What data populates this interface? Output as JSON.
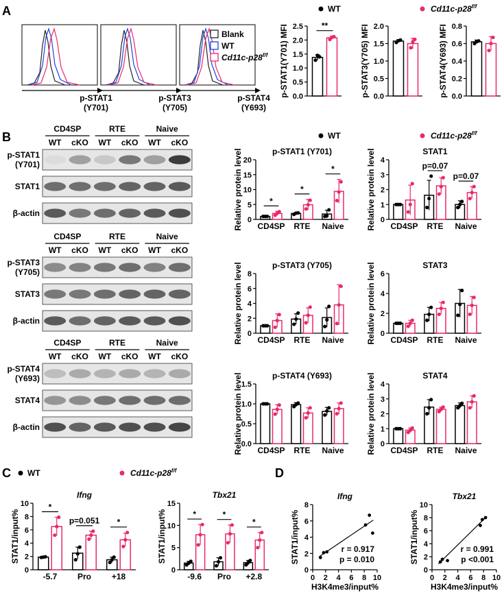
{
  "colors": {
    "wt": "#000000",
    "cko": "#e8296a",
    "blank": "#222222",
    "wt_line": "#2040e0"
  },
  "legend": {
    "wt": "WT",
    "cko": "Cd11c-p28",
    "cko_sup": "f/f"
  },
  "panel_a": {
    "letter": "A",
    "flow": [
      {
        "label": "p-STAT1",
        "site": "(Y701)"
      },
      {
        "label": "p-STAT3",
        "site": "(Y705)"
      },
      {
        "label": "p-STAT4",
        "site": "(Y693)"
      }
    ],
    "flow_legend": [
      "Blank",
      "WT",
      "Cd11c-p28"
    ],
    "flow_legend_sup": "f/f"
  },
  "panel_b": {
    "letter": "B",
    "blots": [
      {
        "groups": [
          "CD4SP",
          "RTE",
          "Naive"
        ],
        "lanes": [
          "WT",
          "cKO",
          "WT",
          "cKO",
          "WT",
          "cKO"
        ],
        "rows": [
          "p-STAT1\n(Y701)",
          "STAT1",
          "β-actin"
        ]
      },
      {
        "groups": [
          "CD4SP",
          "RTE",
          "Naive"
        ],
        "lanes": [
          "WT",
          "cKO",
          "WT",
          "cKO",
          "WT",
          "cKO"
        ],
        "rows": [
          "p-STAT3\n(Y705)",
          "STAT3",
          "β-actin"
        ]
      },
      {
        "groups": [
          "CD4SP",
          "RTE",
          "Naive"
        ],
        "lanes": [
          "WT",
          "cKO",
          "WT",
          "cKO",
          "WT",
          "cKO"
        ],
        "rows": [
          "p-STAT4\n(Y693)",
          "STAT4",
          "β-actin"
        ]
      }
    ]
  },
  "panel_c": {
    "letter": "C"
  },
  "panel_d": {
    "letter": "D"
  },
  "chart_data": [
    {
      "id": "a1",
      "type": "bar",
      "ylabel": "p-STAT1(Y701) MFI",
      "ylim": [
        0,
        2.5
      ],
      "yticks": [
        0,
        0.5,
        1.0,
        1.5,
        2.0,
        2.5
      ],
      "categories": [
        ""
      ],
      "series": [
        {
          "name": "WT",
          "values": [
            1.38
          ],
          "err": [
            0.1
          ],
          "points": [
            [
              1.28,
              1.45,
              1.4
            ]
          ]
        },
        {
          "name": "Cd11c-p28f/f",
          "values": [
            2.08
          ],
          "err": [
            0.06
          ],
          "points": [
            [
              2.02,
              2.1,
              2.12
            ]
          ]
        }
      ],
      "annotations": [
        {
          "cat": 0,
          "text": "**"
        }
      ]
    },
    {
      "id": "a2",
      "type": "bar",
      "ylabel": "p-STAT3(Y705) MFI",
      "ylim": [
        0,
        2.0
      ],
      "yticks": [
        0,
        0.5,
        1.0,
        1.5,
        2.0
      ],
      "categories": [
        ""
      ],
      "series": [
        {
          "name": "WT",
          "values": [
            1.57
          ],
          "err": [
            0.04
          ],
          "points": [
            [
              1.53,
              1.58,
              1.6
            ]
          ]
        },
        {
          "name": "Cd11c-p28f/f",
          "values": [
            1.5
          ],
          "err": [
            0.15
          ],
          "points": [
            [
              1.38,
              1.55,
              1.62
            ]
          ]
        }
      ]
    },
    {
      "id": "a3",
      "type": "bar",
      "ylabel": "p-STAT4(Y693) MFI",
      "ylim": [
        0,
        0.8
      ],
      "yticks": [
        0,
        0.2,
        0.4,
        0.6,
        0.8
      ],
      "categories": [
        ""
      ],
      "series": [
        {
          "name": "WT",
          "values": [
            0.62
          ],
          "err": [
            0.02
          ],
          "points": [
            [
              0.6,
              0.62,
              0.63
            ]
          ]
        },
        {
          "name": "Cd11c-p28f/f",
          "values": [
            0.6
          ],
          "err": [
            0.08
          ],
          "points": [
            [
              0.52,
              0.6,
              0.67
            ]
          ]
        }
      ]
    },
    {
      "id": "b1",
      "type": "bar",
      "title": "p-STAT1 (Y701)",
      "ylabel": "Relative protein level",
      "ylim": [
        0,
        20
      ],
      "yticks": [
        0,
        5,
        10,
        15,
        20
      ],
      "categories": [
        "CD4SP",
        "RTE",
        "Naive"
      ],
      "series": [
        {
          "name": "WT",
          "values": [
            1.0,
            2.0,
            1.8
          ],
          "err": [
            0.1,
            0.3,
            1.3
          ],
          "points": [
            [
              1,
              1,
              1
            ],
            [
              1.7,
              2.1,
              2.2
            ],
            [
              1,
              1.2,
              3.2
            ]
          ]
        },
        {
          "name": "Cd11c-p28f/f",
          "values": [
            2.0,
            4.9,
            9.4
          ],
          "err": [
            0.7,
            1.8,
            4.0
          ],
          "points": [
            [
              1.4,
              2.1,
              2.6
            ],
            [
              3.5,
              4.9,
              6.4
            ],
            [
              6.3,
              9.2,
              12.6
            ]
          ]
        }
      ],
      "annotations": [
        {
          "cat": 0,
          "text": "*"
        },
        {
          "cat": 1,
          "text": "*"
        },
        {
          "cat": 2,
          "text": "*"
        }
      ]
    },
    {
      "id": "b2",
      "type": "bar",
      "title": "STAT1",
      "ylabel": "Relative protein level",
      "ylim": [
        0,
        4
      ],
      "yticks": [
        0,
        1,
        2,
        3,
        4
      ],
      "categories": [
        "CD4SP",
        "RTE",
        "Naive"
      ],
      "series": [
        {
          "name": "WT",
          "values": [
            1.0,
            1.62,
            1.0
          ],
          "err": [
            0.02,
            1.0,
            0.25
          ],
          "points": [
            [
              1,
              1,
              1
            ],
            [
              0.8,
              1.4,
              2.9
            ],
            [
              0.8,
              1,
              1.2
            ]
          ]
        },
        {
          "name": "Cd11c-p28f/f",
          "values": [
            1.3,
            2.25,
            1.8
          ],
          "err": [
            1.0,
            0.55,
            0.4
          ],
          "points": [
            [
              0.5,
              1.0,
              2.4
            ],
            [
              1.7,
              2.2,
              2.8
            ],
            [
              1.4,
              1.8,
              2.2
            ]
          ]
        }
      ],
      "annotations": [
        {
          "cat": 1,
          "text": "p=0.07"
        },
        {
          "cat": 2,
          "text": "p=0.07"
        }
      ]
    },
    {
      "id": "b3",
      "type": "bar",
      "title": "p-STAT3 (Y705)",
      "ylabel": "Relative protein level",
      "ylim": [
        0,
        8
      ],
      "yticks": [
        0,
        2,
        4,
        6,
        8
      ],
      "categories": [
        "CD4SP",
        "RTE",
        "Naive"
      ],
      "series": [
        {
          "name": "WT",
          "values": [
            1.0,
            1.9,
            2.1
          ],
          "err": [
            0.05,
            0.7,
            1.3
          ],
          "points": [
            [
              1,
              1,
              1
            ],
            [
              1.2,
              1.9,
              2.7
            ],
            [
              0.9,
              1.8,
              3.6
            ]
          ]
        },
        {
          "name": "Cd11c-p28f/f",
          "values": [
            1.7,
            2.4,
            3.8
          ],
          "err": [
            0.9,
            1.0,
            2.7
          ],
          "points": [
            [
              0.8,
              1.7,
              2.5
            ],
            [
              1.4,
              2.4,
              3.5
            ],
            [
              1.3,
              3.8,
              6.3
            ]
          ]
        }
      ]
    },
    {
      "id": "b4",
      "type": "bar",
      "title": "STAT3",
      "ylabel": "Relative protein level",
      "ylim": [
        0,
        6
      ],
      "yticks": [
        0,
        2,
        4,
        6
      ],
      "categories": [
        "CD4SP",
        "RTE",
        "Naive"
      ],
      "series": [
        {
          "name": "WT",
          "values": [
            1.0,
            1.9,
            3.0
          ],
          "err": [
            0.02,
            0.7,
            1.4
          ],
          "points": [
            [
              1,
              1,
              1
            ],
            [
              1.3,
              1.9,
              2.6
            ],
            [
              1.8,
              2.9,
              4.3
            ]
          ]
        },
        {
          "name": "Cd11c-p28f/f",
          "values": [
            1.0,
            2.5,
            2.8
          ],
          "err": [
            0.3,
            0.6,
            0.9
          ],
          "points": [
            [
              0.7,
              1,
              1.3
            ],
            [
              1.9,
              2.5,
              3.1
            ],
            [
              1.9,
              2.8,
              3.6
            ]
          ]
        }
      ]
    },
    {
      "id": "b5",
      "type": "bar",
      "title": "p-STAT4 (Y693)",
      "ylabel": "Relative protein level",
      "ylim": [
        0,
        1.5
      ],
      "yticks": [
        0,
        0.5,
        1.0,
        1.5
      ],
      "categories": [
        "CD4SP",
        "RTE",
        "Naive"
      ],
      "series": [
        {
          "name": "WT",
          "values": [
            1.0,
            0.98,
            0.81
          ],
          "err": [
            0.01,
            0.05,
            0.1
          ],
          "points": [
            [
              1,
              1,
              1
            ],
            [
              0.93,
              0.98,
              1.02
            ],
            [
              0.72,
              0.82,
              0.9
            ]
          ]
        },
        {
          "name": "Cd11c-p28f/f",
          "values": [
            0.86,
            0.77,
            0.88
          ],
          "err": [
            0.12,
            0.13,
            0.14
          ],
          "points": [
            [
              0.74,
              0.86,
              0.97
            ],
            [
              0.65,
              0.77,
              0.9
            ],
            [
              0.75,
              0.88,
              1.02
            ]
          ]
        }
      ]
    },
    {
      "id": "b6",
      "type": "bar",
      "title": "STAT4",
      "ylabel": "Relative protein level",
      "ylim": [
        0,
        4
      ],
      "yticks": [
        0,
        1,
        2,
        3,
        4
      ],
      "categories": [
        "CD4SP",
        "RTE",
        "Naive"
      ],
      "series": [
        {
          "name": "WT",
          "values": [
            1.0,
            2.45,
            2.55
          ],
          "err": [
            0.02,
            0.5,
            0.18
          ],
          "points": [
            [
              1,
              1,
              1
            ],
            [
              2.0,
              2.4,
              2.95
            ],
            [
              2.4,
              2.55,
              2.7
            ]
          ]
        },
        {
          "name": "Cd11c-p28f/f",
          "values": [
            0.9,
            2.3,
            2.8
          ],
          "err": [
            0.15,
            0.15,
            0.4
          ],
          "points": [
            [
              0.75,
              0.9,
              1.05
            ],
            [
              2.15,
              2.3,
              2.45
            ],
            [
              2.4,
              2.8,
              3.2
            ]
          ]
        }
      ]
    },
    {
      "id": "c1",
      "type": "bar",
      "title": "Ifng",
      "ylabel": "STAT1/input%",
      "ylim": [
        0,
        10
      ],
      "yticks": [
        0,
        2,
        4,
        6,
        8,
        10
      ],
      "categories": [
        "-5.7",
        "Pro",
        "+18"
      ],
      "series": [
        {
          "name": "WT",
          "values": [
            1.9,
            2.5,
            1.5
          ],
          "err": [
            0.05,
            0.9,
            0.4
          ],
          "points": [
            [
              1.85,
              1.9,
              1.95
            ],
            [
              1.5,
              2.4,
              3.4
            ],
            [
              1.1,
              1.5,
              1.9
            ]
          ]
        },
        {
          "name": "Cd11c-p28f/f",
          "values": [
            6.5,
            5.2,
            4.5
          ],
          "err": [
            1.4,
            0.6,
            1.0
          ],
          "points": [
            [
              5.2,
              6.5,
              7.9
            ],
            [
              4.6,
              5.2,
              5.8
            ],
            [
              3.5,
              4.5,
              5.6
            ]
          ]
        }
      ],
      "annotations": [
        {
          "cat": 0,
          "text": "*"
        },
        {
          "cat": 1,
          "text": "p=0.051"
        },
        {
          "cat": 2,
          "text": "*"
        }
      ]
    },
    {
      "id": "c2",
      "type": "bar",
      "title": "Tbx21",
      "ylabel": "STAT1/input%",
      "ylim": [
        0,
        15
      ],
      "yticks": [
        0,
        5,
        10,
        15
      ],
      "categories": [
        "-9.6",
        "Pro",
        "+2.8"
      ],
      "series": [
        {
          "name": "WT",
          "values": [
            1.5,
            1.8,
            1.6
          ],
          "err": [
            0.4,
            0.9,
            0.5
          ],
          "points": [
            [
              1.1,
              1.5,
              1.9
            ],
            [
              0.9,
              1.8,
              2.7
            ],
            [
              1.1,
              1.6,
              2.1
            ]
          ]
        },
        {
          "name": "Cd11c-p28f/f",
          "values": [
            7.9,
            8.1,
            6.7
          ],
          "err": [
            2.3,
            2.0,
            1.7
          ],
          "points": [
            [
              5.6,
              7.9,
              10.2
            ],
            [
              6.1,
              8.1,
              10.1
            ],
            [
              5,
              6.7,
              8.4
            ]
          ]
        }
      ],
      "annotations": [
        {
          "cat": 0,
          "text": "*"
        },
        {
          "cat": 1,
          "text": "*"
        },
        {
          "cat": 2,
          "text": "*"
        }
      ]
    },
    {
      "id": "d1",
      "type": "scatter",
      "title": "Ifng",
      "xlabel": "H3K4me3/input%",
      "ylabel": "STAT1/input%",
      "xlim": [
        0,
        10
      ],
      "ylim": [
        0,
        8
      ],
      "xticks": [
        0,
        2,
        4,
        6,
        8,
        10
      ],
      "yticks": [
        0,
        2,
        4,
        6,
        8
      ],
      "points": [
        [
          1.2,
          1.5
        ],
        [
          1.7,
          2.1
        ],
        [
          2.2,
          2.2
        ],
        [
          8.2,
          5.5
        ],
        [
          8.8,
          6.7
        ],
        [
          9.3,
          4.5
        ]
      ],
      "fit": [
        [
          1.0,
          1.6
        ],
        [
          9.4,
          6.1
        ]
      ],
      "stats": [
        "r = 0.917",
        "p = 0.010"
      ]
    },
    {
      "id": "d2",
      "type": "scatter",
      "title": "Tbx21",
      "xlabel": "H3K4me3/input%",
      "ylabel": "STAT1/input%",
      "xlim": [
        0,
        10
      ],
      "ylim": [
        0,
        10
      ],
      "xticks": [
        0,
        2,
        4,
        6,
        8,
        10
      ],
      "yticks": [
        0,
        2,
        4,
        6,
        8,
        10
      ],
      "points": [
        [
          1.3,
          1.2
        ],
        [
          1.6,
          1.6
        ],
        [
          2.4,
          1.4
        ],
        [
          7.5,
          6.8
        ],
        [
          7.8,
          7.7
        ],
        [
          8.3,
          8.0
        ]
      ],
      "fit": [
        [
          1.0,
          0.9
        ],
        [
          8.5,
          8.2
        ]
      ],
      "stats": [
        "r = 0.991",
        "p <0.001"
      ]
    }
  ]
}
